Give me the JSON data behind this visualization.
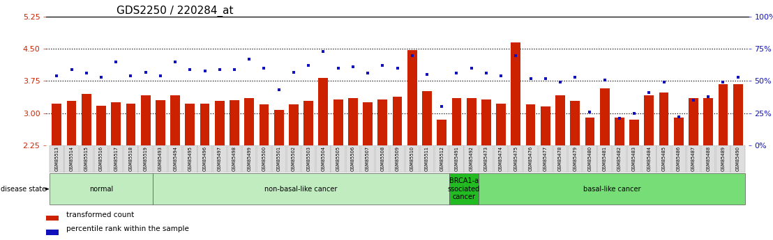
{
  "title": "GDS2250 / 220284_at",
  "samples": [
    "GSM85513",
    "GSM85514",
    "GSM85515",
    "GSM85516",
    "GSM85517",
    "GSM85518",
    "GSM85519",
    "GSM85493",
    "GSM85494",
    "GSM85495",
    "GSM85496",
    "GSM85497",
    "GSM85498",
    "GSM85499",
    "GSM85500",
    "GSM85501",
    "GSM85502",
    "GSM85503",
    "GSM85504",
    "GSM85505",
    "GSM85506",
    "GSM85507",
    "GSM85508",
    "GSM85509",
    "GSM85510",
    "GSM85511",
    "GSM85512",
    "GSM85491",
    "GSM85492",
    "GSM85473",
    "GSM85474",
    "GSM85475",
    "GSM85476",
    "GSM85477",
    "GSM85478",
    "GSM85479",
    "GSM85480",
    "GSM85481",
    "GSM85482",
    "GSM85483",
    "GSM85484",
    "GSM85485",
    "GSM85486",
    "GSM85487",
    "GSM85488",
    "GSM85489",
    "GSM85490"
  ],
  "bar_values": [
    3.22,
    3.28,
    3.45,
    3.18,
    3.25,
    3.22,
    3.42,
    3.3,
    3.42,
    3.22,
    3.22,
    3.28,
    3.3,
    3.35,
    3.2,
    3.08,
    3.2,
    3.28,
    3.82,
    3.32,
    3.35,
    3.25,
    3.32,
    3.38,
    4.48,
    3.52,
    2.85,
    3.35,
    3.35,
    3.32,
    3.22,
    4.65,
    3.2,
    3.15,
    3.42,
    3.28,
    2.9,
    3.58,
    2.9,
    2.85,
    3.42,
    3.48,
    2.9,
    3.35,
    3.35,
    3.68,
    3.68
  ],
  "percentile_values": [
    54,
    59,
    56,
    53,
    65,
    54,
    57,
    54,
    65,
    59,
    58,
    59,
    59,
    67,
    60,
    43,
    57,
    62,
    73,
    60,
    61,
    56,
    62,
    60,
    70,
    55,
    30,
    56,
    60,
    56,
    54,
    70,
    52,
    52,
    49,
    53,
    26,
    51,
    21,
    25,
    41,
    49,
    22,
    35,
    38,
    49,
    53
  ],
  "groups": [
    {
      "label": "normal",
      "start": 0,
      "end": 7,
      "color": "#c0ecc0"
    },
    {
      "label": "non-basal-like cancer",
      "start": 7,
      "end": 27,
      "color": "#c0ecc0"
    },
    {
      "label": "BRCA1-a\nssociated\ncancer",
      "start": 27,
      "end": 29,
      "color": "#22bb22"
    },
    {
      "label": "basal-like cancer",
      "start": 29,
      "end": 47,
      "color": "#77dd77"
    }
  ],
  "ylim_left": [
    2.25,
    5.25
  ],
  "ylim_right": [
    0,
    100
  ],
  "yticks_left": [
    2.25,
    3.0,
    3.75,
    4.5,
    5.25
  ],
  "yticks_right": [
    0,
    25,
    50,
    75,
    100
  ],
  "hlines": [
    3.0,
    3.75,
    4.5
  ],
  "bar_color": "#cc2200",
  "percentile_color": "#1111bb",
  "title_fontsize": 11,
  "left_axis_color": "#cc2200",
  "right_axis_color": "#1111bb",
  "group_colors": [
    "#c0ecc0",
    "#c0ecc0",
    "#22bb22",
    "#77dd77"
  ],
  "group_border_colors": [
    "#777777",
    "#777777",
    "#007700",
    "#777777"
  ]
}
